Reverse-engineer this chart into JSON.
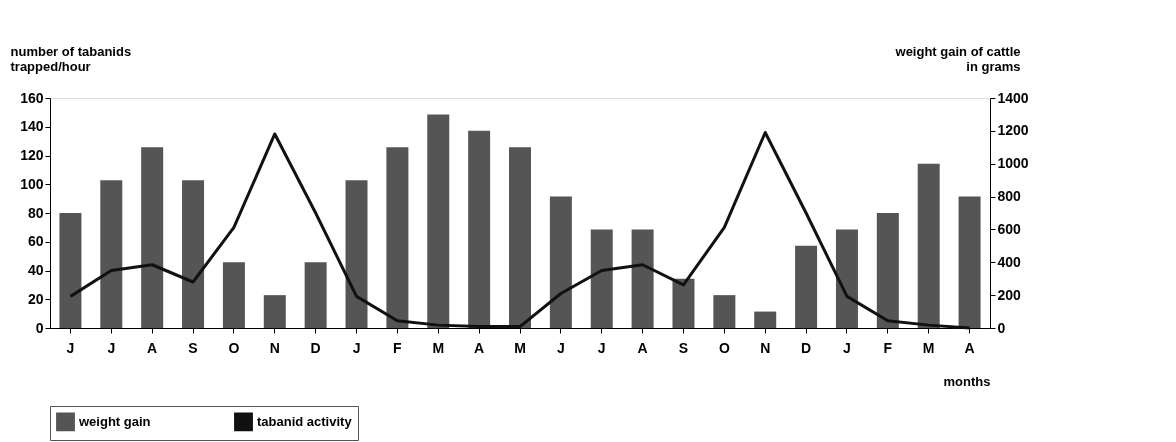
{
  "chart_data": {
    "type": "bar",
    "categories": [
      "J",
      "J",
      "A",
      "S",
      "O",
      "N",
      "D",
      "J",
      "F",
      "M",
      "A",
      "M",
      "J",
      "J",
      "A",
      "S",
      "O",
      "N",
      "D",
      "J",
      "F",
      "M",
      "A"
    ],
    "xlabel": "months",
    "ylabel": "number of tabanids\ntrapped/hour",
    "y2label": "weight gain of cattle\nin grams",
    "series": [
      {
        "name": "weight gain",
        "axis": "y2",
        "color": "#555555",
        "values": [
          700,
          900,
          1100,
          900,
          400,
          200,
          400,
          900,
          1100,
          1300,
          1200,
          1100,
          800,
          600,
          600,
          300,
          200,
          100,
          500,
          600,
          700,
          1000,
          800
        ]
      },
      {
        "name": "tabanid activity",
        "type": "line",
        "color": "#111111",
        "values": [
          22,
          40,
          44,
          32,
          70,
          135,
          80,
          22,
          5,
          2,
          1,
          1,
          24,
          40,
          44,
          30,
          70,
          136,
          80,
          22,
          5,
          2,
          0
        ]
      }
    ],
    "ylim": [
      0,
      160
    ],
    "yticks": [
      0,
      20,
      40,
      60,
      80,
      100,
      120,
      140,
      160
    ],
    "y2lim": [
      0,
      1400
    ],
    "y2ticks": [
      0,
      200,
      400,
      600,
      800,
      1000,
      1200,
      1400
    ],
    "grid": false,
    "legend": "bottom left"
  }
}
